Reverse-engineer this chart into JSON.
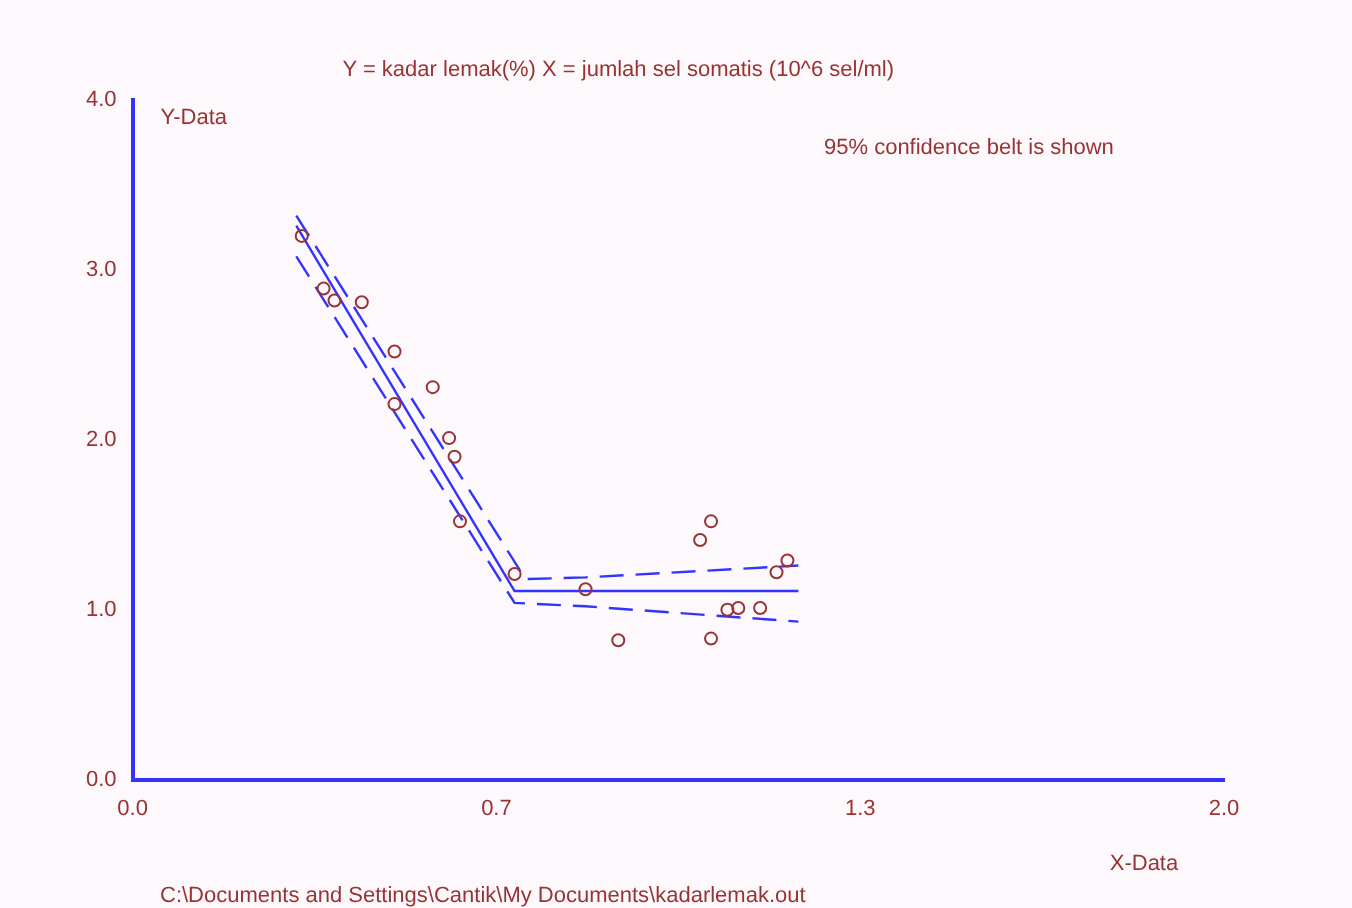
{
  "chart_data": {
    "type": "scatter",
    "title": "Y = kadar lemak(%) X = jumlah sel somatis (10^6 sel/ml)",
    "xlabel": "X-Data",
    "ylabel": "Y-Data",
    "annotations": [
      "95% confidence belt is shown",
      "C:\\Documents and Settings\\Cantik\\My Documents\\kadarlemak.out"
    ],
    "xlim": [
      0,
      2
    ],
    "ylim": [
      0,
      4
    ],
    "xticks": [
      {
        "value": 0,
        "label": "0.0"
      },
      {
        "value": 0.6667,
        "label": "0.7"
      },
      {
        "value": 1.3333,
        "label": "1.3"
      },
      {
        "value": 2,
        "label": "2.0"
      }
    ],
    "yticks": [
      {
        "value": 0,
        "label": "0.0"
      },
      {
        "value": 1,
        "label": "1.0"
      },
      {
        "value": 2,
        "label": "2.0"
      },
      {
        "value": 3,
        "label": "3.0"
      },
      {
        "value": 4,
        "label": "4.0"
      }
    ],
    "grid": false,
    "legend": false,
    "marker": "circle",
    "series": [
      {
        "type": "scatter",
        "color": "#993333",
        "x": [
          0.31,
          0.35,
          0.37,
          0.42,
          0.48,
          0.48,
          0.55,
          0.58,
          0.59,
          0.6,
          0.7,
          0.83,
          1.04,
          1.06,
          1.09,
          1.11,
          1.15,
          1.18,
          1.2,
          0.89,
          1.06
        ],
        "values": [
          3.2,
          2.89,
          2.82,
          2.81,
          2.52,
          2.21,
          2.31,
          2.01,
          1.9,
          1.52,
          1.21,
          1.12,
          1.41,
          1.52,
          1.0,
          1.01,
          1.01,
          1.22,
          1.29,
          0.82,
          0.83
        ]
      },
      {
        "type": "line",
        "color": "#3333ff",
        "line_style": "solid",
        "marker": "none",
        "x": [
          0.3,
          0.7,
          1.22
        ],
        "values": [
          3.26,
          1.11,
          1.11
        ]
      },
      {
        "type": "line",
        "color": "#3333ff",
        "line_style": "dashed",
        "marker": "none",
        "x": [
          0.3,
          0.72,
          0.83,
          1.22
        ],
        "values": [
          3.32,
          1.18,
          1.19,
          1.26
        ]
      },
      {
        "type": "line",
        "color": "#3333ff",
        "line_style": "dashed",
        "marker": "none",
        "x": [
          0.3,
          0.7,
          0.83,
          1.22
        ],
        "values": [
          3.08,
          1.04,
          1.02,
          0.93
        ]
      }
    ]
  }
}
